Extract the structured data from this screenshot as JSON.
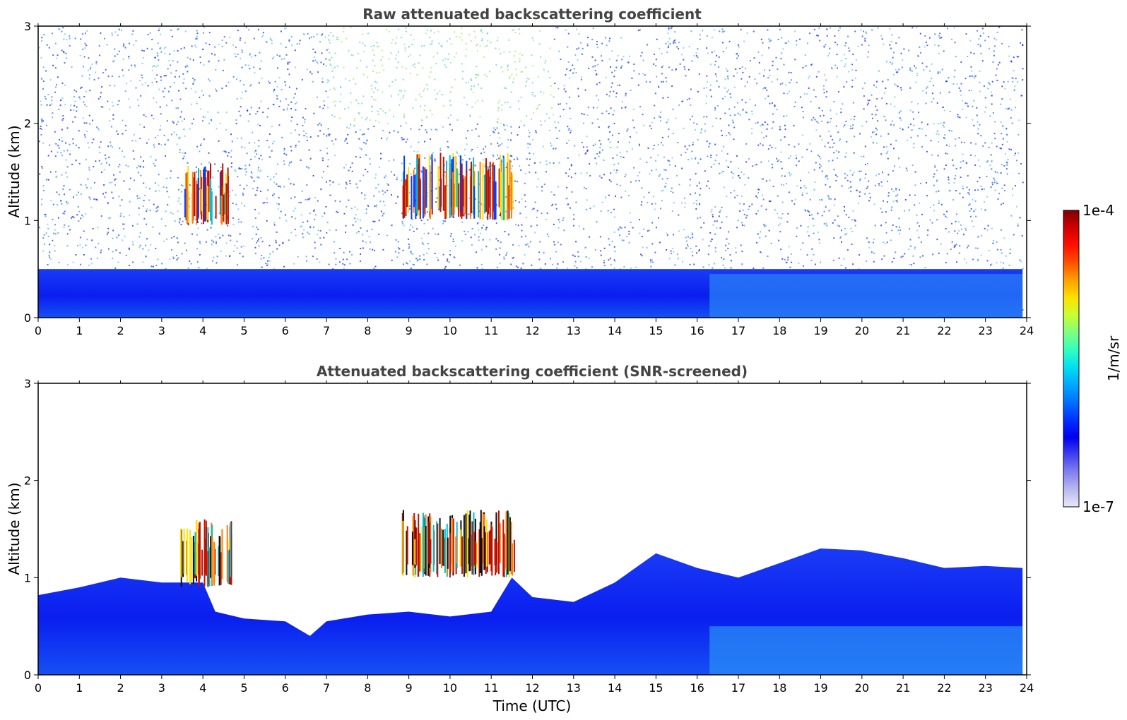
{
  "chart_data": [
    {
      "type": "heatmap",
      "title": "Raw attenuated backscattering coefficient",
      "xlabel": "",
      "ylabel": "Altitude (km)",
      "xlim": [
        0,
        24
      ],
      "ylim": [
        0,
        3
      ],
      "x_ticks": [
        0,
        1,
        2,
        3,
        4,
        5,
        6,
        7,
        8,
        9,
        10,
        11,
        12,
        13,
        14,
        15,
        16,
        17,
        18,
        19,
        20,
        21,
        22,
        23,
        24
      ],
      "y_ticks": [
        0,
        1,
        2,
        3
      ],
      "colorscale": "jet (log)",
      "features": [
        {
          "name": "boundary-layer",
          "time_start": 0,
          "time_end": 23.9,
          "altitude_top_km": 0.5,
          "level": "low (blue)"
        },
        {
          "name": "cloud",
          "time_start": 3.5,
          "time_end": 4.6,
          "altitude_bottom_km": 0.95,
          "altitude_top_km": 1.6,
          "level": "high (red/yellow)"
        },
        {
          "name": "cloud",
          "time_start": 8.8,
          "time_end": 11.5,
          "altitude_bottom_km": 1.0,
          "altitude_top_km": 1.7,
          "level": "high (red)"
        },
        {
          "name": "elevated-noise",
          "time_start": 7,
          "time_end": 12.5,
          "altitude_bottom_km": 2.0,
          "altitude_top_km": 3.0,
          "level": "medium (green/yellow)"
        }
      ]
    },
    {
      "type": "heatmap",
      "title": "Attenuated backscattering coefficient (SNR-screened)",
      "xlabel": "Time (UTC)",
      "ylabel": "Altitude (km)",
      "xlim": [
        0,
        24
      ],
      "ylim": [
        0,
        3
      ],
      "x_ticks": [
        0,
        1,
        2,
        3,
        4,
        5,
        6,
        7,
        8,
        9,
        10,
        11,
        12,
        13,
        14,
        15,
        16,
        17,
        18,
        19,
        20,
        21,
        22,
        23,
        24
      ],
      "y_ticks": [
        0,
        1,
        2,
        3
      ],
      "colorscale": "jet (log)",
      "boundary_layer_top_km": [
        {
          "t": 0,
          "z": 0.82
        },
        {
          "t": 1,
          "z": 0.9
        },
        {
          "t": 2,
          "z": 1.0
        },
        {
          "t": 3,
          "z": 0.95
        },
        {
          "t": 4,
          "z": 0.95
        },
        {
          "t": 4.3,
          "z": 0.65
        },
        {
          "t": 5,
          "z": 0.58
        },
        {
          "t": 6,
          "z": 0.55
        },
        {
          "t": 6.6,
          "z": 0.4
        },
        {
          "t": 7,
          "z": 0.55
        },
        {
          "t": 8,
          "z": 0.62
        },
        {
          "t": 9,
          "z": 0.65
        },
        {
          "t": 10,
          "z": 0.6
        },
        {
          "t": 11,
          "z": 0.65
        },
        {
          "t": 11.5,
          "z": 1.0
        },
        {
          "t": 12,
          "z": 0.8
        },
        {
          "t": 13,
          "z": 0.75
        },
        {
          "t": 14,
          "z": 0.95
        },
        {
          "t": 15,
          "z": 1.25
        },
        {
          "t": 16,
          "z": 1.1
        },
        {
          "t": 17,
          "z": 1.0
        },
        {
          "t": 18,
          "z": 1.15
        },
        {
          "t": 19,
          "z": 1.3
        },
        {
          "t": 20,
          "z": 1.28
        },
        {
          "t": 21,
          "z": 1.2
        },
        {
          "t": 22,
          "z": 1.1
        },
        {
          "t": 23,
          "z": 1.12
        },
        {
          "t": 23.9,
          "z": 1.1
        }
      ],
      "features": [
        {
          "name": "cloud",
          "time_start": 3.4,
          "time_end": 4.7,
          "altitude_bottom_km": 0.9,
          "altitude_top_km": 1.6,
          "level": "high (red/yellow)"
        },
        {
          "name": "cloud",
          "time_start": 8.8,
          "time_end": 11.6,
          "altitude_bottom_km": 1.0,
          "altitude_top_km": 1.7,
          "level": "high (red/black)"
        }
      ]
    }
  ],
  "colorbar": {
    "label": "1/m/sr",
    "max_label": "1e-4",
    "min_label": "1e-7",
    "colors": [
      "#e8e8f8",
      "#b8b8f0",
      "#8080f0",
      "#4040f0",
      "#0000f0",
      "#0030ff",
      "#0070ff",
      "#00a8ff",
      "#00e0f0",
      "#30ffc0",
      "#80ff80",
      "#c8ff30",
      "#ffe000",
      "#ffa000",
      "#ff5000",
      "#ff1000",
      "#d00000",
      "#800000"
    ]
  },
  "colors": {
    "title": "#444444",
    "boundary_layer": "#0a1ef0",
    "boundary_layer_light": "#2a7af0",
    "cloud_hot": "#c01000"
  }
}
